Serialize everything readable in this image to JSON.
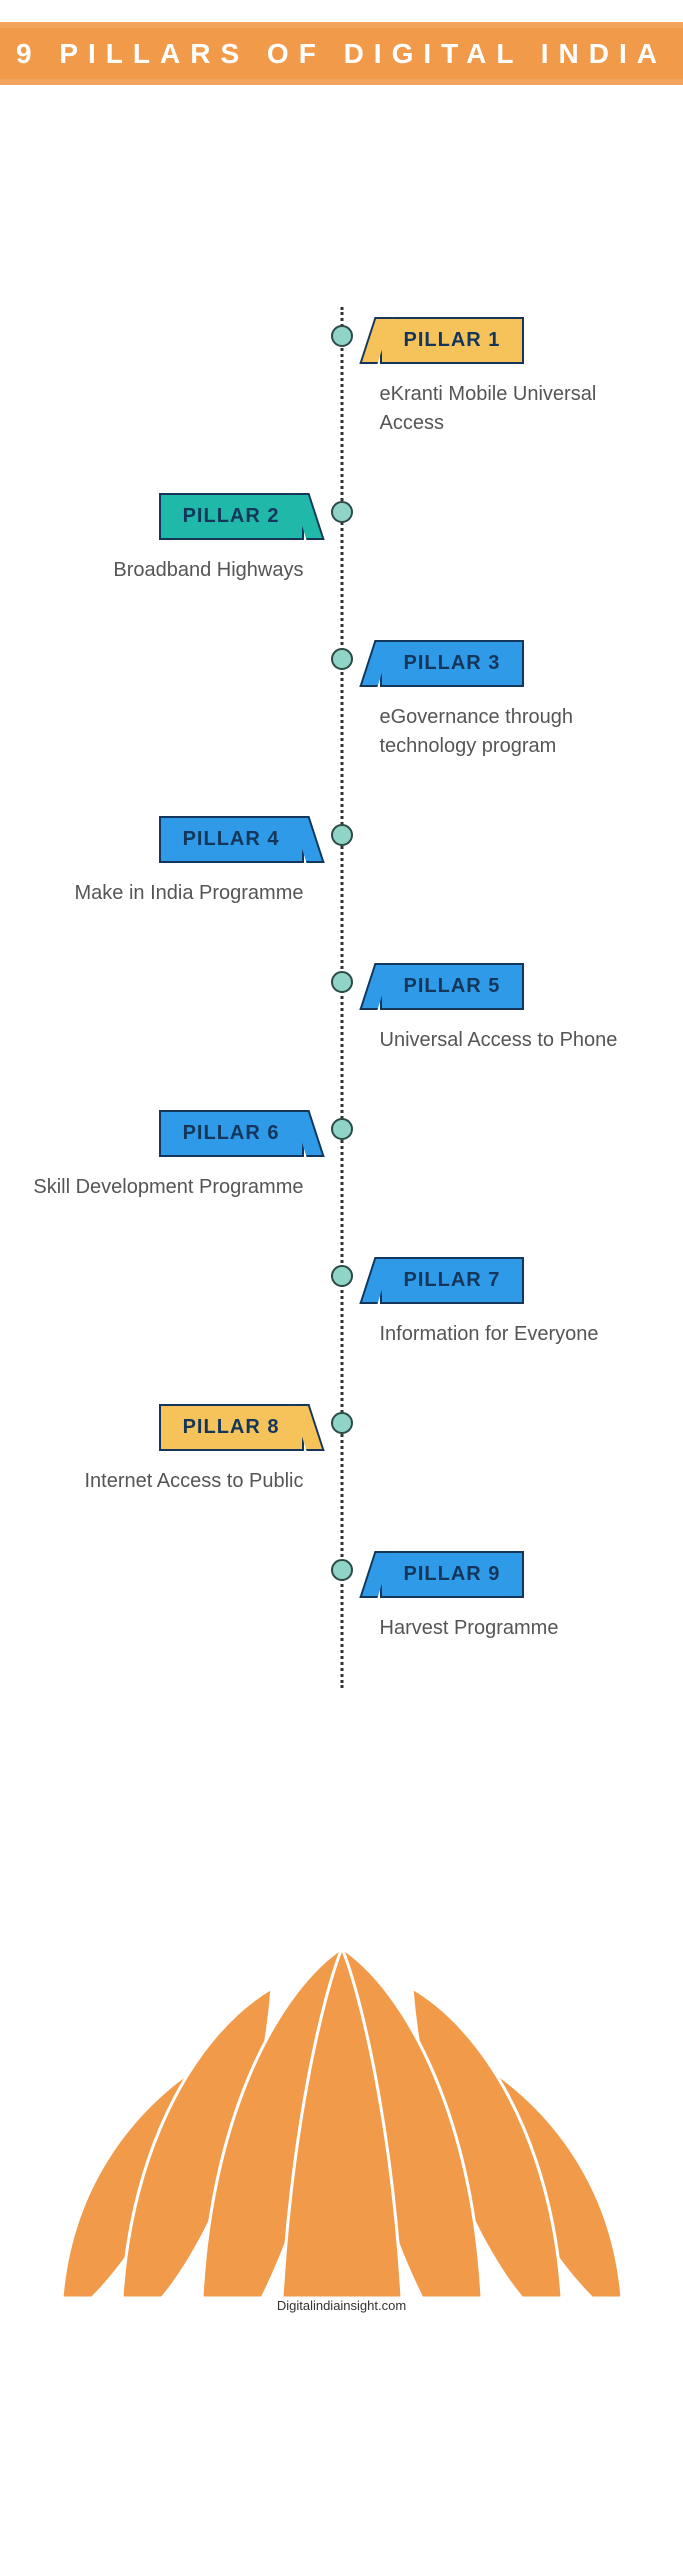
{
  "header": {
    "title": "9 PILLARS OF DIGITAL INDIA"
  },
  "colors": {
    "brush": "#f19a4a",
    "dot_fill": "#8fd4c7",
    "border": "#13365a",
    "teal": "#1fb8a9",
    "blue": "#2f9ae8",
    "yellow": "#f6c35a",
    "lotus": "#f19a4a"
  },
  "pillars": [
    {
      "label": "PILLAR 1",
      "desc": "eKranti Mobile Universal Access",
      "side": "right",
      "tag_color": "#f6c35a"
    },
    {
      "label": "PILLAR 2",
      "desc": "Broadband Highways",
      "side": "left",
      "tag_color": "#1fb8a9"
    },
    {
      "label": "PILLAR 3",
      "desc": "eGovernance through technology program",
      "side": "right",
      "tag_color": "#2f9ae8"
    },
    {
      "label": "PILLAR 4",
      "desc": "Make in India Programme",
      "side": "left",
      "tag_color": "#2f9ae8"
    },
    {
      "label": "PILLAR 5",
      "desc": "Universal Access to Phone",
      "side": "right",
      "tag_color": "#2f9ae8"
    },
    {
      "label": "PILLAR 6",
      "desc": "Skill Development Programme",
      "side": "left",
      "tag_color": "#2f9ae8"
    },
    {
      "label": "PILLAR 7",
      "desc": "Information for Everyone",
      "side": "right",
      "tag_color": "#2f9ae8"
    },
    {
      "label": "PILLAR 8",
      "desc": "Internet Access to Public",
      "side": "left",
      "tag_color": "#f6c35a"
    },
    {
      "label": "PILLAR 9",
      "desc": "Harvest Programme",
      "side": "right",
      "tag_color": "#2f9ae8"
    }
  ],
  "footer": {
    "source": "Digitalindiainsight.com"
  }
}
